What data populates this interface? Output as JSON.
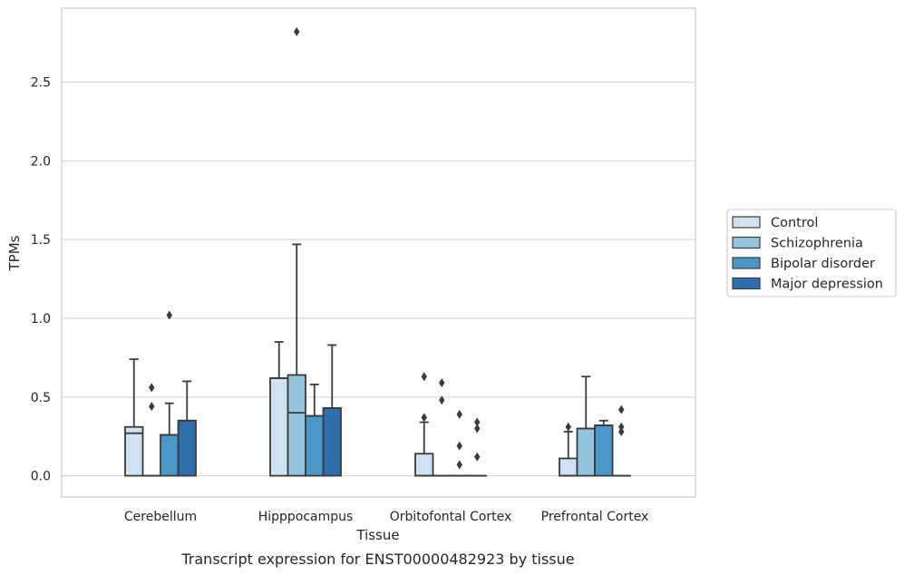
{
  "caption": "Transcript expression for ENST00000482923 by tissue",
  "chart_data": {
    "type": "box",
    "xlabel": "Tissue",
    "ylabel": "TPMs",
    "ylim": [
      -0.135,
      2.97
    ],
    "yticks": [
      "0.0",
      "0.5",
      "1.0",
      "1.5",
      "2.0",
      "2.5"
    ],
    "ytick_values": [
      0,
      0.5,
      1.0,
      1.5,
      2.0,
      2.5
    ],
    "grid": true,
    "legend_position": "right",
    "categories": [
      "Cerebellum",
      "Hipppocampus",
      "Orbitofontal Cortex",
      "Prefrontal Cortex"
    ],
    "series": [
      {
        "name": "Control",
        "color": "#d0e1f2",
        "boxes": [
          {
            "min": 0,
            "q1": 0,
            "median": 0.27,
            "q3": 0.31,
            "max": 0.74,
            "outliers": []
          },
          {
            "min": 0,
            "q1": 0,
            "median": 0.62,
            "q3": 0.62,
            "max": 0.85,
            "outliers": []
          },
          {
            "min": 0,
            "q1": 0,
            "median": 0.0,
            "q3": 0.14,
            "max": 0.34,
            "outliers": [
              0.37,
              0.63
            ]
          },
          {
            "min": 0,
            "q1": 0,
            "median": 0.0,
            "q3": 0.11,
            "max": 0.28,
            "outliers": [
              0.31
            ]
          }
        ]
      },
      {
        "name": "Schizophrenia",
        "color": "#94c4df",
        "boxes": [
          {
            "min": 0,
            "q1": 0,
            "median": 0,
            "q3": 0,
            "max": 0,
            "outliers": [
              0.44,
              0.56
            ]
          },
          {
            "min": 0,
            "q1": 0,
            "median": 0.4,
            "q3": 0.64,
            "max": 1.47,
            "outliers": [
              2.82
            ]
          },
          {
            "min": 0,
            "q1": 0,
            "median": 0,
            "q3": 0,
            "max": 0,
            "outliers": [
              0.48,
              0.59
            ]
          },
          {
            "min": 0,
            "q1": 0,
            "median": 0.3,
            "q3": 0.3,
            "max": 0.63,
            "outliers": []
          }
        ]
      },
      {
        "name": "Bipolar disorder",
        "color": "#4a98c9",
        "boxes": [
          {
            "min": 0,
            "q1": 0,
            "median": 0.26,
            "q3": 0.26,
            "max": 0.46,
            "outliers": [
              1.02
            ]
          },
          {
            "min": 0,
            "q1": 0,
            "median": 0.38,
            "q3": 0.38,
            "max": 0.58,
            "outliers": []
          },
          {
            "min": 0,
            "q1": 0,
            "median": 0,
            "q3": 0,
            "max": 0,
            "outliers": [
              0.07,
              0.19,
              0.39
            ]
          },
          {
            "min": 0,
            "q1": 0,
            "median": 0.32,
            "q3": 0.32,
            "max": 0.35,
            "outliers": []
          }
        ]
      },
      {
        "name": "Major depression",
        "color": "#2e6fab",
        "boxes": [
          {
            "min": 0,
            "q1": 0,
            "median": 0.35,
            "q3": 0.35,
            "max": 0.6,
            "outliers": []
          },
          {
            "min": 0,
            "q1": 0,
            "median": 0.43,
            "q3": 0.43,
            "max": 0.83,
            "outliers": []
          },
          {
            "min": 0,
            "q1": 0,
            "median": 0,
            "q3": 0,
            "max": 0,
            "outliers": [
              0.12,
              0.3,
              0.34
            ]
          },
          {
            "min": 0,
            "q1": 0,
            "median": 0,
            "q3": 0,
            "max": 0,
            "outliers": [
              0.28,
              0.31,
              0.42
            ]
          }
        ]
      }
    ]
  }
}
